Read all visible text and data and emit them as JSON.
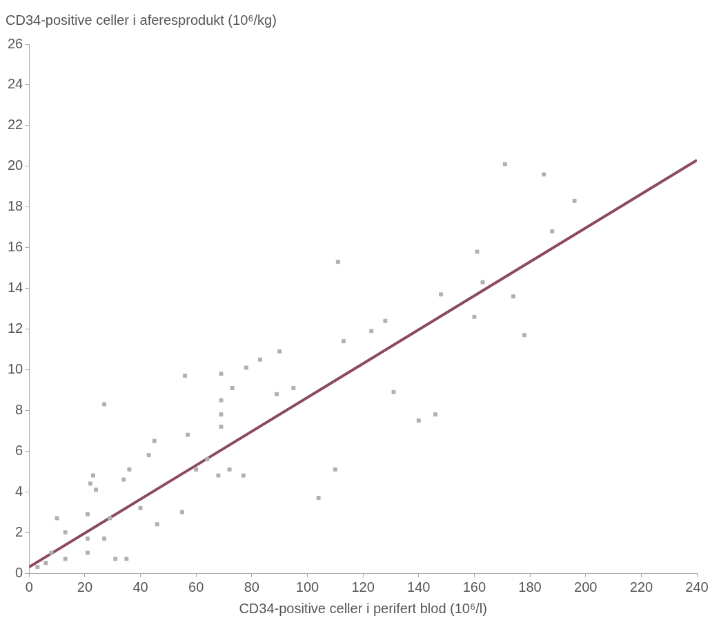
{
  "chart_data": {
    "type": "scatter",
    "ylabel": "CD34-positive celler i aferesprodukt (10⁶/kg)",
    "xlabel": "CD34-positive celler i perifert blod (10⁶/l)",
    "xlim": [
      0,
      240
    ],
    "xticks": [
      0,
      20,
      40,
      60,
      80,
      100,
      120,
      140,
      160,
      180,
      200,
      220,
      240
    ],
    "ylim": [
      0,
      26
    ],
    "yticks": [
      0,
      2,
      4,
      6,
      8,
      10,
      12,
      14,
      16,
      18,
      20,
      22,
      24,
      26
    ],
    "grid": false,
    "legend": false,
    "marker": "square",
    "series": [
      {
        "type": "scatter",
        "color": "#b0b0b0",
        "x": [
          171,
          185,
          196,
          188,
          161,
          111,
          163,
          148,
          174,
          160,
          178,
          128,
          123,
          113,
          90,
          83,
          78,
          69,
          56,
          95,
          73,
          131,
          89,
          27,
          69,
          69,
          146,
          140,
          57,
          45,
          69,
          64,
          60,
          43,
          68,
          72,
          77,
          110,
          104,
          36,
          34,
          23,
          22,
          24,
          55,
          46,
          40,
          29,
          21,
          13,
          10,
          21,
          27,
          31,
          35,
          8,
          13,
          21,
          3,
          6
        ],
        "values": [
          20.1,
          19.6,
          18.3,
          16.8,
          15.8,
          15.3,
          14.3,
          13.7,
          13.6,
          12.6,
          11.7,
          12.4,
          11.9,
          11.4,
          10.9,
          10.5,
          10.1,
          9.8,
          9.7,
          9.1,
          9.1,
          8.9,
          8.8,
          8.3,
          8.5,
          7.8,
          7.8,
          7.5,
          6.8,
          6.5,
          7.2,
          5.6,
          5.1,
          5.8,
          4.8,
          5.1,
          4.8,
          5.1,
          3.7,
          5.1,
          4.6,
          4.8,
          4.4,
          4.1,
          3.0,
          2.4,
          3.2,
          2.7,
          2.9,
          2.0,
          2.7,
          1.7,
          1.7,
          0.7,
          0.7,
          1.0,
          0.7,
          1.0,
          0.3,
          0.5
        ]
      },
      {
        "type": "line",
        "color": "#8b4b5c",
        "marker": "none",
        "x": [
          0,
          240
        ],
        "values": [
          0.3,
          20.3
        ]
      }
    ]
  }
}
